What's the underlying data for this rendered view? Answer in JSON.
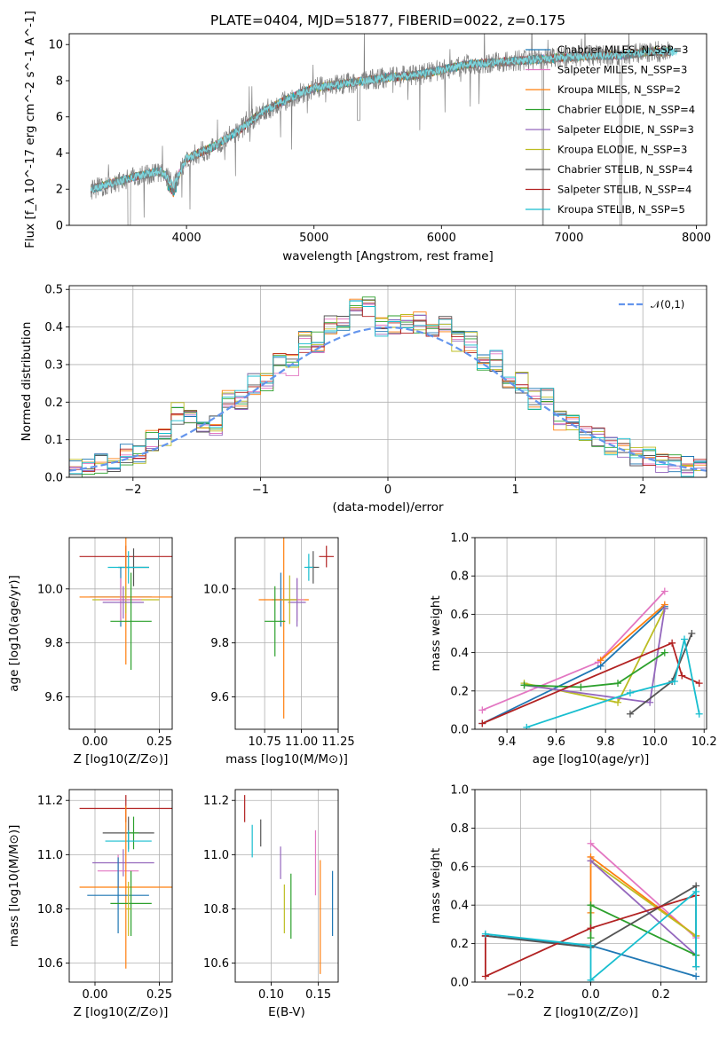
{
  "figure": {
    "title": "PLATE=0404, MJD=51877, FIBERID=0022, z=0.175"
  },
  "chart_data": [
    {
      "id": "spectrum",
      "type": "line",
      "title": "PLATE=0404, MJD=51877, FIBERID=0022, z=0.175",
      "xlabel": "wavelength [Angstrom, rest frame]",
      "ylabel": "Flux [f_λ 10^-17 erg cm^-2 s^-1 A^-1]",
      "xlim": [
        3080,
        8080
      ],
      "ylim": [
        0,
        10.6
      ],
      "xticks": [
        4000,
        5000,
        6000,
        7000,
        8000
      ],
      "yticks": [
        0,
        2,
        4,
        6,
        8,
        10
      ],
      "grid": false,
      "legend_position": "top-right",
      "legend": [
        {
          "label": "Chabrier MILES, N_SSP=3",
          "color": "#1f77b4"
        },
        {
          "label": "Salpeter MILES, N_SSP=3",
          "color": "#e377c2"
        },
        {
          "label": "Kroupa MILES, N_SSP=2",
          "color": "#ff7f0e"
        },
        {
          "label": "Chabrier ELODIE, N_SSP=4",
          "color": "#2ca02c"
        },
        {
          "label": "Salpeter ELODIE, N_SSP=3",
          "color": "#9467bd"
        },
        {
          "label": "Kroupa ELODIE, N_SSP=3",
          "color": "#bcbd22"
        },
        {
          "label": "Chabrier STELIB, N_SSP=4",
          "color": "#555555"
        },
        {
          "label": "Salpeter STELIB, N_SSP=4",
          "color": "#b22222"
        },
        {
          "label": "Kroupa STELIB, N_SSP=5",
          "color": "#17becf"
        }
      ],
      "continuum": {
        "x": [
          3250,
          3400,
          3600,
          3800,
          3900,
          4000,
          4200,
          4400,
          4600,
          4800,
          5000,
          5200,
          5400,
          5600,
          5800,
          6000,
          6200,
          6400,
          6600,
          6800,
          7000,
          7200,
          7400,
          7600,
          7800
        ],
        "y": [
          2.0,
          2.3,
          2.7,
          3.0,
          2.2,
          3.7,
          4.3,
          5.2,
          6.3,
          7.0,
          7.6,
          7.8,
          8.0,
          8.2,
          8.3,
          8.6,
          8.9,
          9.0,
          9.1,
          9.2,
          9.3,
          9.4,
          9.4,
          9.6,
          9.6
        ]
      }
    },
    {
      "id": "residuals",
      "type": "line",
      "xlabel": "(data-model)/error",
      "ylabel": "Normed distribution",
      "xlim": [
        -2.5,
        2.5
      ],
      "ylim": [
        0,
        0.51
      ],
      "xticks": [
        -2,
        -1,
        0,
        1,
        2
      ],
      "yticks": [
        0.0,
        0.1,
        0.2,
        0.3,
        0.4,
        0.5
      ],
      "grid": true,
      "legend_position": "top-right",
      "legend": [
        {
          "label": "𝒩(0,1)",
          "color": "#6495ed",
          "style": "dashed"
        }
      ],
      "histogram_bins": [
        -2.5,
        -2.3,
        -2.1,
        -1.9,
        -1.7,
        -1.5,
        -1.3,
        -1.1,
        -0.9,
        -0.7,
        -0.5,
        -0.3,
        -0.1,
        0.1,
        0.3,
        0.5,
        0.7,
        0.9,
        1.1,
        1.3,
        1.5,
        1.7,
        1.9,
        2.1,
        2.3,
        2.5
      ],
      "histogram_counts": [
        0.02,
        0.04,
        0.06,
        0.1,
        0.17,
        0.14,
        0.21,
        0.25,
        0.3,
        0.36,
        0.41,
        0.45,
        0.4,
        0.41,
        0.4,
        0.36,
        0.31,
        0.25,
        0.21,
        0.15,
        0.11,
        0.08,
        0.05,
        0.04,
        0.03
      ]
    },
    {
      "id": "age-vs-Z",
      "type": "scatter",
      "xlabel": "Z [log10(Z/Z⊙)]",
      "ylabel": "age [log10(age/yr)]",
      "xlim": [
        -0.1,
        0.3
      ],
      "ylim": [
        9.48,
        10.19
      ],
      "xticks": [
        0.0,
        0.25
      ],
      "yticks": [
        9.6,
        9.8,
        10.0
      ],
      "grid": true,
      "points": [
        {
          "x": 0.12,
          "y": 10.12,
          "xerr": 0.18,
          "yerr": 0.04,
          "color": "#b22222"
        },
        {
          "x": 0.15,
          "y": 10.08,
          "xerr": 0.06,
          "yerr": 0.07,
          "color": "#555555"
        },
        {
          "x": 0.13,
          "y": 10.08,
          "xerr": 0.08,
          "yerr": 0.06,
          "color": "#17becf"
        },
        {
          "x": 0.1,
          "y": 9.97,
          "xerr": 0.12,
          "yerr": 0.11,
          "color": "#1f77b4"
        },
        {
          "x": 0.12,
          "y": 9.97,
          "xerr": 0.18,
          "yerr": 0.25,
          "color": "#ff7f0e"
        },
        {
          "x": 0.12,
          "y": 9.96,
          "xerr": 0.13,
          "yerr": 0.05,
          "color": "#bcbd22"
        },
        {
          "x": 0.1,
          "y": 9.96,
          "xerr": 0.08,
          "yerr": 0.08,
          "color": "#e377c2"
        },
        {
          "x": 0.11,
          "y": 9.95,
          "xerr": 0.08,
          "yerr": 0.06,
          "color": "#9467bd"
        },
        {
          "x": 0.14,
          "y": 9.88,
          "xerr": 0.08,
          "yerr": 0.18,
          "color": "#2ca02c"
        }
      ]
    },
    {
      "id": "age-vs-mass",
      "type": "scatter",
      "xlabel": "mass [log10(M/M⊙)]",
      "ylabel": "",
      "xlim": [
        10.55,
        11.25
      ],
      "ylim": [
        9.48,
        10.19
      ],
      "xticks": [
        10.75,
        11.0,
        11.25
      ],
      "yticks": [
        9.6,
        9.8,
        10.0
      ],
      "grid": true,
      "points": [
        {
          "x": 11.17,
          "y": 10.12,
          "xerr": 0.05,
          "yerr": 0.04,
          "color": "#b22222"
        },
        {
          "x": 11.08,
          "y": 10.08,
          "xerr": 0.04,
          "yerr": 0.06,
          "color": "#555555"
        },
        {
          "x": 11.05,
          "y": 10.08,
          "xerr": 0.03,
          "yerr": 0.05,
          "color": "#17becf"
        },
        {
          "x": 10.86,
          "y": 9.96,
          "xerr": 0.06,
          "yerr": 0.1,
          "color": "#1f77b4"
        },
        {
          "x": 10.88,
          "y": 9.96,
          "xerr": 0.17,
          "yerr": 0.44,
          "color": "#ff7f0e"
        },
        {
          "x": 10.97,
          "y": 9.96,
          "xerr": 0.05,
          "yerr": 0.08,
          "color": "#e377c2"
        },
        {
          "x": 10.97,
          "y": 9.95,
          "xerr": 0.06,
          "yerr": 0.09,
          "color": "#9467bd"
        },
        {
          "x": 10.92,
          "y": 9.96,
          "xerr": 0.05,
          "yerr": 0.09,
          "color": "#bcbd22"
        },
        {
          "x": 10.82,
          "y": 9.88,
          "xerr": 0.07,
          "yerr": 0.13,
          "color": "#2ca02c"
        }
      ]
    },
    {
      "id": "massweight-vs-age",
      "type": "line",
      "xlabel": "age [log10(age/yr)]",
      "ylabel": "mass weight",
      "xlim": [
        9.27,
        10.21
      ],
      "ylim": [
        0.0,
        1.0
      ],
      "xticks": [
        9.4,
        9.6,
        9.8,
        10.0,
        10.2
      ],
      "yticks": [
        0.0,
        0.2,
        0.4,
        0.6,
        0.8,
        1.0
      ],
      "grid": true,
      "series": [
        {
          "color": "#e377c2",
          "x": [
            9.3,
            9.77,
            10.04
          ],
          "y": [
            0.1,
            0.35,
            0.72
          ]
        },
        {
          "color": "#1f77b4",
          "x": [
            9.3,
            9.78,
            10.04
          ],
          "y": [
            0.03,
            0.33,
            0.64
          ]
        },
        {
          "color": "#ff7f0e",
          "x": [
            9.78,
            10.04
          ],
          "y": [
            0.36,
            0.65
          ]
        },
        {
          "color": "#bcbd22",
          "x": [
            9.47,
            9.85,
            10.04
          ],
          "y": [
            0.24,
            0.14,
            0.63
          ]
        },
        {
          "color": "#9467bd",
          "x": [
            9.47,
            9.98,
            10.04
          ],
          "y": [
            0.23,
            0.14,
            0.63
          ]
        },
        {
          "color": "#2ca02c",
          "x": [
            9.47,
            9.7,
            9.85,
            10.04
          ],
          "y": [
            0.23,
            0.22,
            0.24,
            0.4
          ]
        },
        {
          "color": "#555555",
          "x": [
            9.9,
            10.07,
            10.15
          ],
          "y": [
            0.08,
            0.25,
            0.5
          ]
        },
        {
          "color": "#b22222",
          "x": [
            9.3,
            10.07,
            10.11,
            10.18
          ],
          "y": [
            0.03,
            0.45,
            0.28,
            0.24
          ]
        },
        {
          "color": "#17becf",
          "x": [
            9.48,
            9.9,
            10.08,
            10.12,
            10.18
          ],
          "y": [
            0.01,
            0.19,
            0.25,
            0.47,
            0.08
          ]
        }
      ]
    },
    {
      "id": "mass-vs-Z",
      "type": "scatter",
      "xlabel": "Z [log10(Z/Z⊙)]",
      "ylabel": "mass [log10(M/M⊙)]",
      "xlim": [
        -0.1,
        0.3
      ],
      "ylim": [
        10.53,
        11.24
      ],
      "xticks": [
        0.0,
        0.25
      ],
      "yticks": [
        10.6,
        10.8,
        11.0,
        11.2
      ],
      "grid": true,
      "points": [
        {
          "x": 0.12,
          "y": 11.17,
          "xerr": 0.18,
          "yerr": 0.05,
          "color": "#b22222"
        },
        {
          "x": 0.13,
          "y": 11.08,
          "xerr": 0.1,
          "yerr": 0.06,
          "color": "#555555"
        },
        {
          "x": 0.15,
          "y": 11.08,
          "xerr": 0.02,
          "yerr": 0.06,
          "color": "#2ca02c"
        },
        {
          "x": 0.13,
          "y": 11.05,
          "xerr": 0.09,
          "yerr": 0.04,
          "color": "#17becf"
        },
        {
          "x": 0.11,
          "y": 10.97,
          "xerr": 0.12,
          "yerr": 0.05,
          "color": "#9467bd"
        },
        {
          "x": 0.09,
          "y": 10.94,
          "xerr": 0.08,
          "yerr": 0.06,
          "color": "#e377c2"
        },
        {
          "x": 0.12,
          "y": 10.88,
          "xerr": 0.18,
          "yerr": 0.3,
          "color": "#ff7f0e"
        },
        {
          "x": 0.09,
          "y": 10.85,
          "xerr": 0.12,
          "yerr": 0.14,
          "color": "#1f77b4"
        },
        {
          "x": 0.14,
          "y": 10.82,
          "xerr": 0.08,
          "yerr": 0.12,
          "color": "#2ca02c"
        },
        {
          "x": 0.13,
          "y": 10.8,
          "xerr": 0.01,
          "yerr": 0.1,
          "color": "#bcbd22"
        }
      ]
    },
    {
      "id": "mass-vs-ebv",
      "type": "scatter",
      "xlabel": "E(B-V)",
      "ylabel": "",
      "xlim": [
        0.062,
        0.171
      ],
      "ylim": [
        10.53,
        11.24
      ],
      "xticks": [
        0.1,
        0.15
      ],
      "yticks": [
        10.6,
        10.8,
        11.0,
        11.2
      ],
      "grid": true,
      "points": [
        {
          "x": 0.072,
          "y": 11.17,
          "yerr": 0.05,
          "color": "#b22222"
        },
        {
          "x": 0.08,
          "y": 11.05,
          "yerr": 0.06,
          "color": "#17becf"
        },
        {
          "x": 0.089,
          "y": 11.08,
          "yerr": 0.05,
          "color": "#555555"
        },
        {
          "x": 0.11,
          "y": 10.97,
          "yerr": 0.06,
          "color": "#9467bd"
        },
        {
          "x": 0.114,
          "y": 10.8,
          "yerr": 0.09,
          "color": "#bcbd22"
        },
        {
          "x": 0.121,
          "y": 10.81,
          "yerr": 0.12,
          "color": "#2ca02c"
        },
        {
          "x": 0.147,
          "y": 10.97,
          "yerr": 0.12,
          "color": "#e377c2"
        },
        {
          "x": 0.152,
          "y": 10.77,
          "yerr": 0.21,
          "color": "#ff7f0e"
        },
        {
          "x": 0.165,
          "y": 10.82,
          "yerr": 0.12,
          "color": "#1f77b4"
        }
      ]
    },
    {
      "id": "massweight-vs-Z",
      "type": "line",
      "xlabel": "Z [log10(Z/Z⊙)]",
      "ylabel": "mass weight",
      "xlim": [
        -0.33,
        0.33
      ],
      "ylim": [
        0.0,
        1.0
      ],
      "xticks": [
        -0.2,
        0.0,
        0.2
      ],
      "yticks": [
        0.0,
        0.2,
        0.4,
        0.6,
        0.8,
        1.0
      ],
      "grid": true,
      "series": [
        {
          "color": "#e377c2",
          "x": [
            0.0,
            0.3
          ],
          "y": [
            0.72,
            0.23
          ]
        },
        {
          "color": "#1f77b4",
          "x": [
            -0.3,
            0.0,
            0.3
          ],
          "y": [
            0.24,
            0.19,
            0.03
          ]
        },
        {
          "color": "#ff7f0e",
          "x": [
            0.0,
            0.0,
            0.3
          ],
          "y": [
            0.36,
            0.65,
            0.24
          ]
        },
        {
          "color": "#bcbd22",
          "x": [
            0.0,
            0.3
          ],
          "y": [
            0.63,
            0.24
          ]
        },
        {
          "color": "#9467bd",
          "x": [
            0.0,
            0.3
          ],
          "y": [
            0.63,
            0.14
          ]
        },
        {
          "color": "#2ca02c",
          "x": [
            0.0,
            0.0,
            0.3
          ],
          "y": [
            0.23,
            0.4,
            0.14
          ]
        },
        {
          "color": "#555555",
          "x": [
            -0.3,
            0.0,
            0.3,
            0.3
          ],
          "y": [
            0.24,
            0.18,
            0.5,
            0.08
          ]
        },
        {
          "color": "#b22222",
          "x": [
            -0.3,
            -0.3,
            0.0,
            0.3
          ],
          "y": [
            0.24,
            0.03,
            0.28,
            0.45
          ]
        },
        {
          "color": "#17becf",
          "x": [
            -0.3,
            0.0,
            0.0,
            0.3,
            0.3
          ],
          "y": [
            0.25,
            0.19,
            0.01,
            0.47,
            0.08
          ]
        }
      ]
    }
  ]
}
